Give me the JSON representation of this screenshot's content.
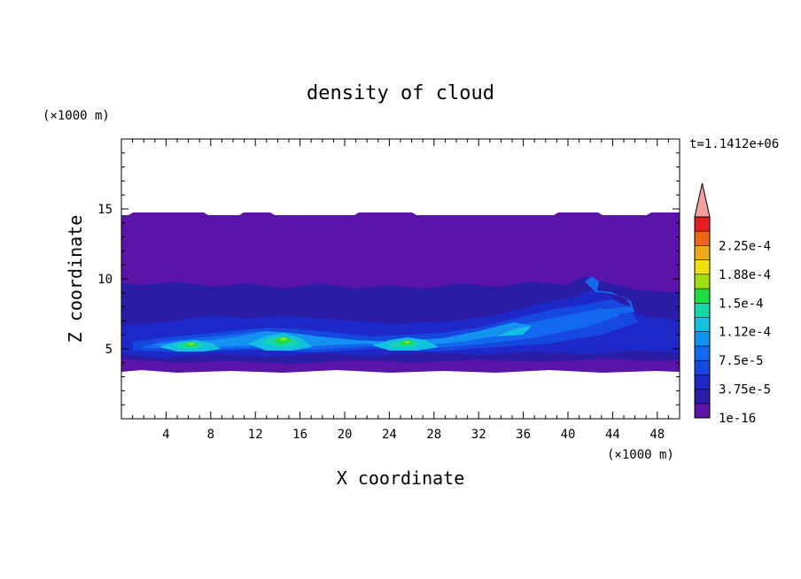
{
  "chart_data": {
    "type": "heatmap",
    "title": "density of cloud",
    "xlabel": "X coordinate",
    "ylabel": "Z coordinate",
    "x_unit": "(×1000 m)",
    "y_unit": "(×1000 m)",
    "time_label": "t=1.1412e+06",
    "xlim": [
      0,
      50
    ],
    "ylim": [
      0,
      20
    ],
    "x_ticks": [
      "4",
      "8",
      "12",
      "16",
      "20",
      "24",
      "28",
      "32",
      "36",
      "40",
      "44",
      "48"
    ],
    "y_ticks": [
      "5",
      "10",
      "15"
    ],
    "grid": false,
    "colorbar": {
      "labels": [
        "1e-16",
        "3.75e-5",
        "7.5e-5",
        "1.12e-4",
        "1.5e-4",
        "1.88e-4",
        "2.25e-4"
      ],
      "levels": [
        1e-16,
        1.875e-05,
        3.75e-05,
        5.625e-05,
        7.5e-05,
        9.375e-05,
        0.0001125,
        0.00013125,
        0.00015,
        0.00016875,
        0.0001875,
        0.00020625,
        0.000225,
        0.00024375
      ],
      "colors": [
        "#5a14a8",
        "#2b1ca6",
        "#1e28c8",
        "#1448e0",
        "#1468f0",
        "#1492f2",
        "#14c0e0",
        "#14d8a8",
        "#20dc40",
        "#a0e010",
        "#f0e010",
        "#f0a814",
        "#f06414",
        "#e81e1e"
      ],
      "overflow_color": "#f5a0a0"
    },
    "field_summary": {
      "cloud_base_z": 3.5,
      "cloud_top_z": 14.5,
      "dominant_band": {
        "z_range": [
          3.5,
          14.5
        ],
        "density": "1e-16 to 3.75e-5"
      },
      "high_density_cores": [
        {
          "x": 6,
          "z": 5.3,
          "density": 0.00013
        },
        {
          "x": 14,
          "z": 5.6,
          "density": 0.00015
        },
        {
          "x": 25,
          "z": 5.4,
          "density": 0.00014
        },
        {
          "x": 42,
          "z": 7.6,
          "density": 9e-05
        }
      ]
    }
  }
}
